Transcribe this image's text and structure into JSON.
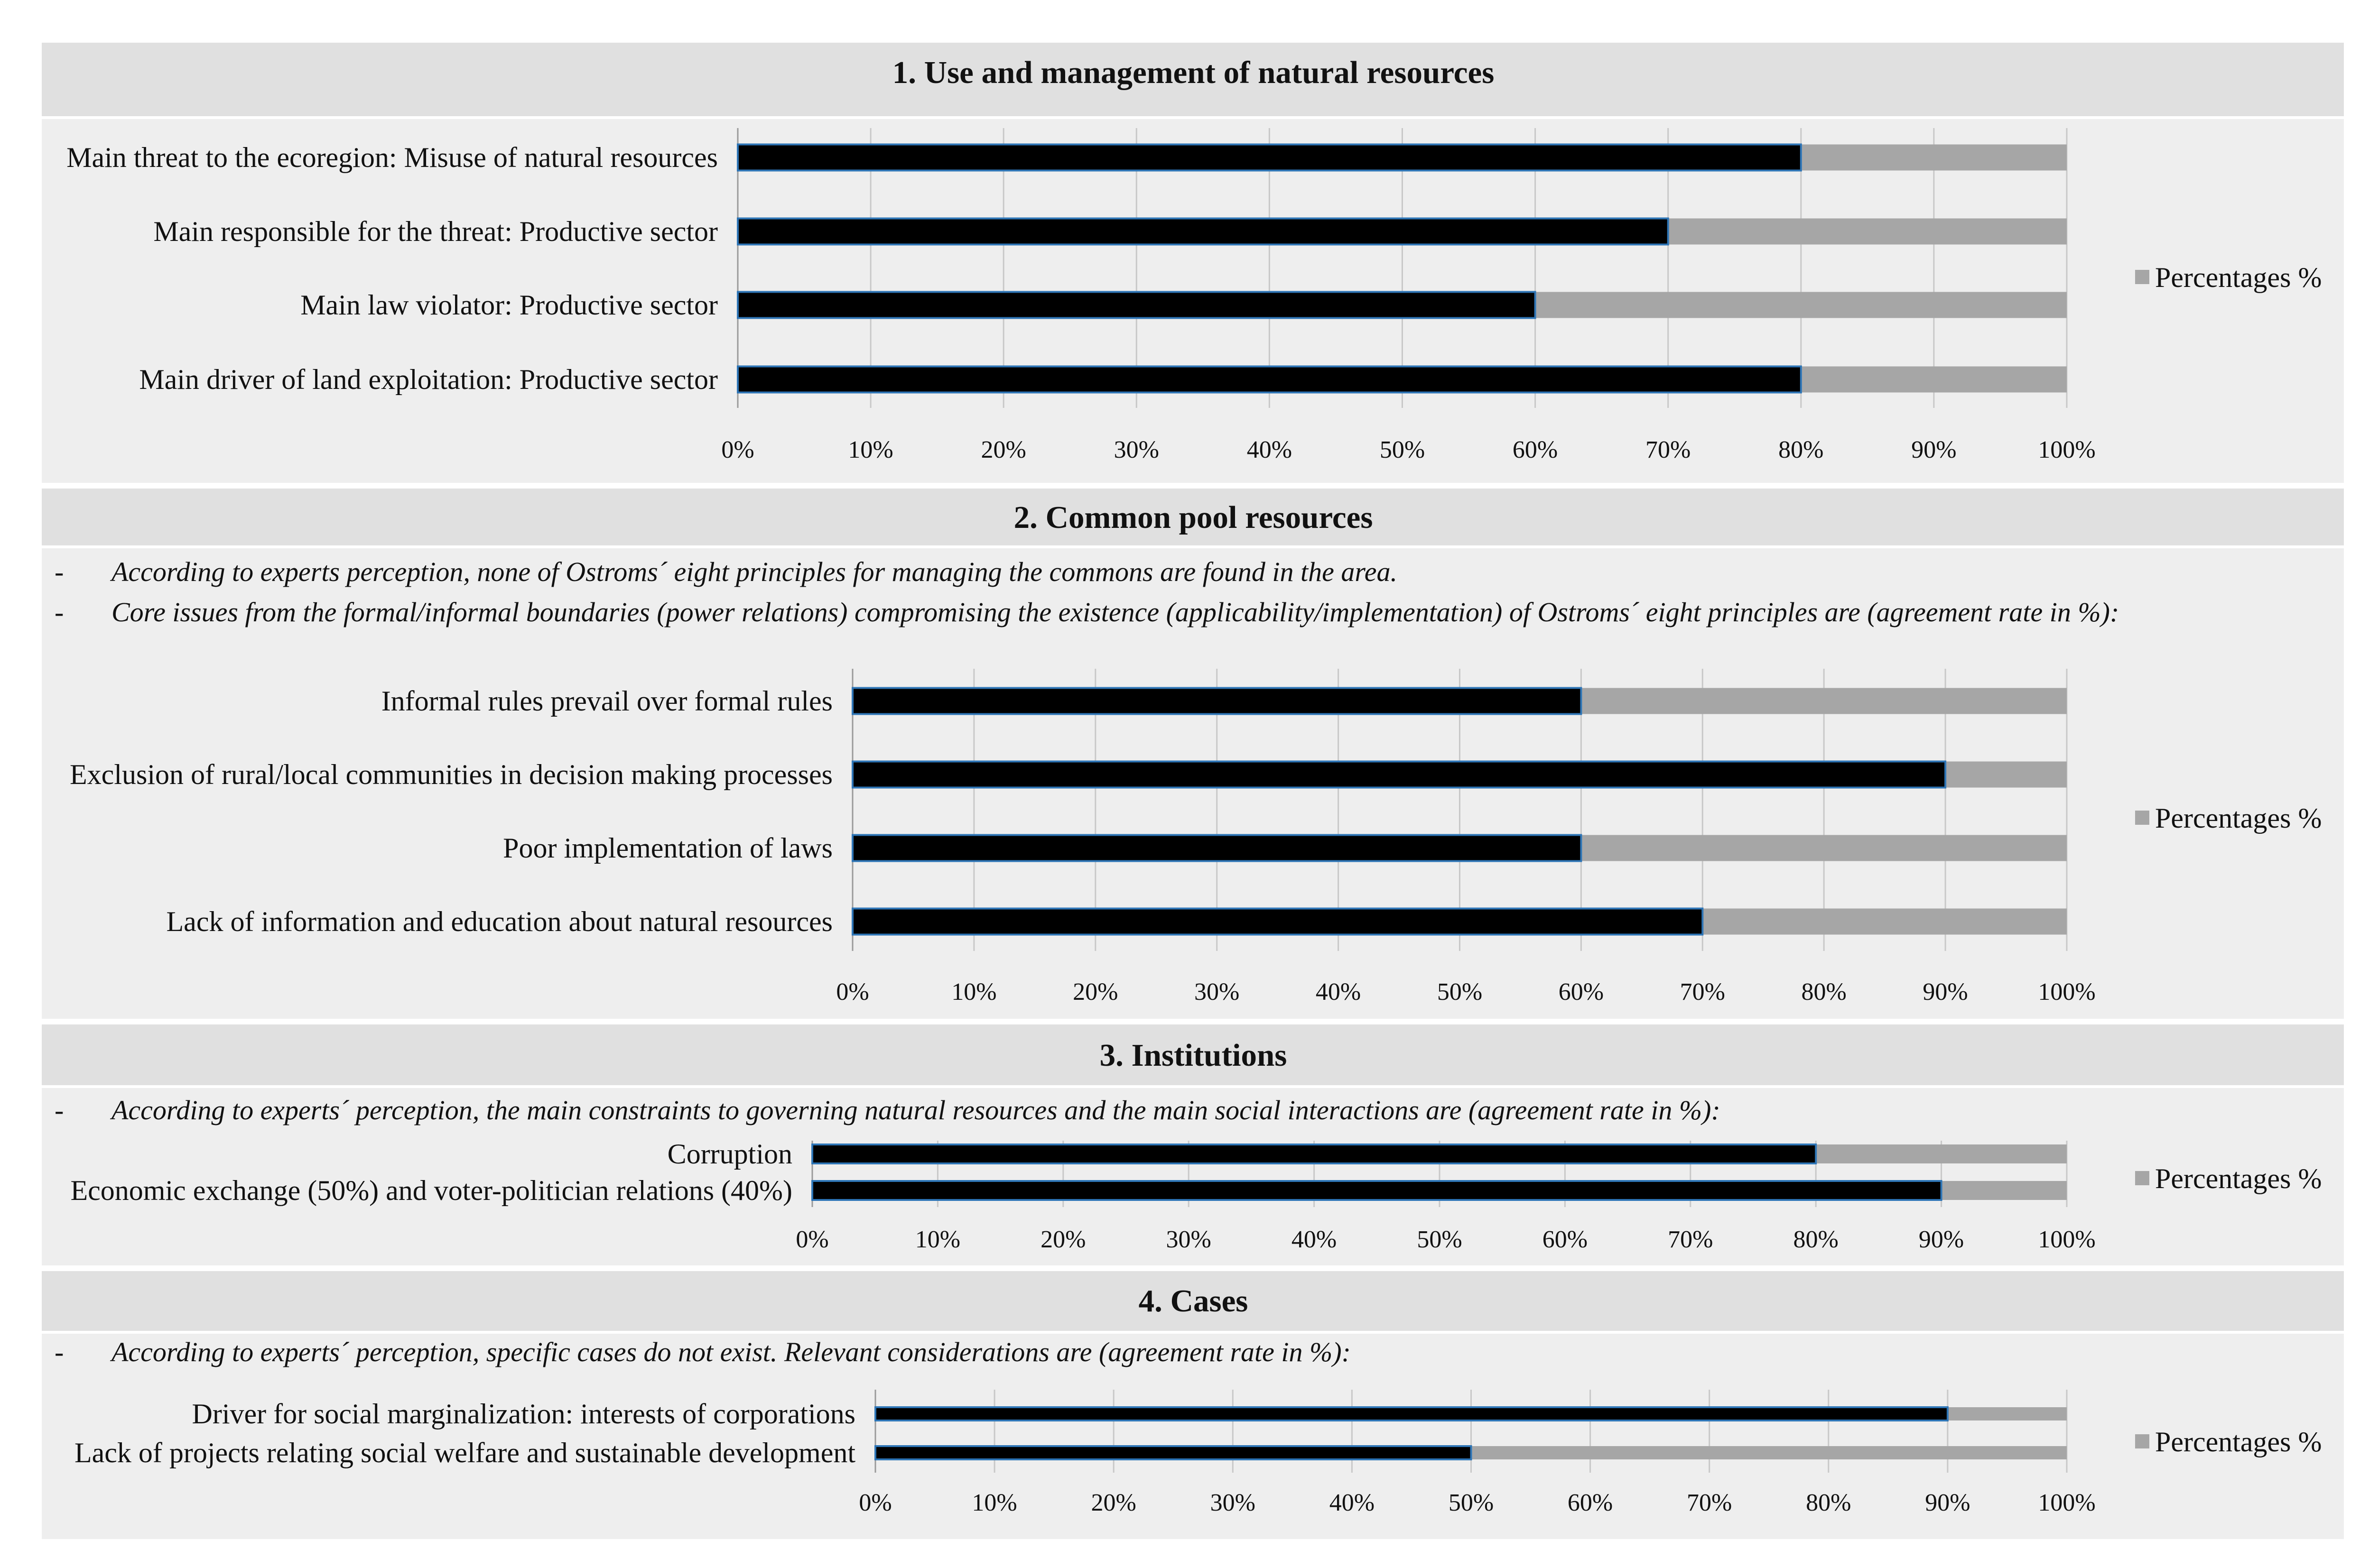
{
  "chart_data": [
    {
      "type": "bar",
      "orientation": "horizontal",
      "title": "1. Use and management of natural resources",
      "notes": [],
      "categories": [
        "Main threat to the ecoregion: Misuse of natural resources",
        "Main responsible for the threat: Productive sector",
        "Main law violator: Productive sector",
        "Main driver of land exploitation: Productive sector"
      ],
      "values": [
        80,
        70,
        60,
        80
      ],
      "xlim": [
        0,
        100
      ],
      "ticks": [
        "0%",
        "10%",
        "20%",
        "30%",
        "40%",
        "50%",
        "60%",
        "70%",
        "80%",
        "90%",
        "100%"
      ],
      "legend": "Percentages %",
      "legend_position": "right",
      "grid": true
    },
    {
      "type": "bar",
      "orientation": "horizontal",
      "title": "2. Common pool resources",
      "notes": [
        "According to experts perception, none of Ostroms´ eight principles for managing the commons are found in the area.",
        "Core issues from the formal/informal boundaries (power relations) compromising the existence (applicability/implementation) of Ostroms´ eight principles are (agreement rate in %):"
      ],
      "categories": [
        "Informal rules prevail over formal rules",
        "Exclusion of rural/local communities in decision making processes",
        "Poor implementation of laws",
        "Lack of information and education about natural resources"
      ],
      "values": [
        60,
        90,
        60,
        70
      ],
      "xlim": [
        0,
        100
      ],
      "ticks": [
        "0%",
        "10%",
        "20%",
        "30%",
        "40%",
        "50%",
        "60%",
        "70%",
        "80%",
        "90%",
        "100%"
      ],
      "legend": "Percentages %",
      "legend_position": "right",
      "grid": true
    },
    {
      "type": "bar",
      "orientation": "horizontal",
      "title": "3. Institutions",
      "notes": [
        "According to experts´ perception, the main constraints to governing natural resources and the main social interactions are (agreement rate in %):"
      ],
      "categories": [
        "Corruption",
        "Economic exchange (50%) and voter-politician relations (40%)"
      ],
      "values": [
        80,
        90
      ],
      "xlim": [
        0,
        100
      ],
      "ticks": [
        "0%",
        "10%",
        "20%",
        "30%",
        "40%",
        "50%",
        "60%",
        "70%",
        "80%",
        "90%",
        "100%"
      ],
      "legend": "Percentages %",
      "legend_position": "right",
      "grid": true
    },
    {
      "type": "bar",
      "orientation": "horizontal",
      "title": "4. Cases",
      "notes": [
        "According to experts´ perception, specific cases do not exist. Relevant considerations are (agreement rate in %):"
      ],
      "categories": [
        "Driver for social marginalization: interests of corporations",
        "Lack of projects relating  social welfare and sustainable development"
      ],
      "values": [
        90,
        50
      ],
      "xlim": [
        0,
        100
      ],
      "ticks": [
        "0%",
        "10%",
        "20%",
        "30%",
        "40%",
        "50%",
        "60%",
        "70%",
        "80%",
        "90%",
        "100%"
      ],
      "legend": "Percentages %",
      "legend_position": "right",
      "grid": true
    }
  ]
}
